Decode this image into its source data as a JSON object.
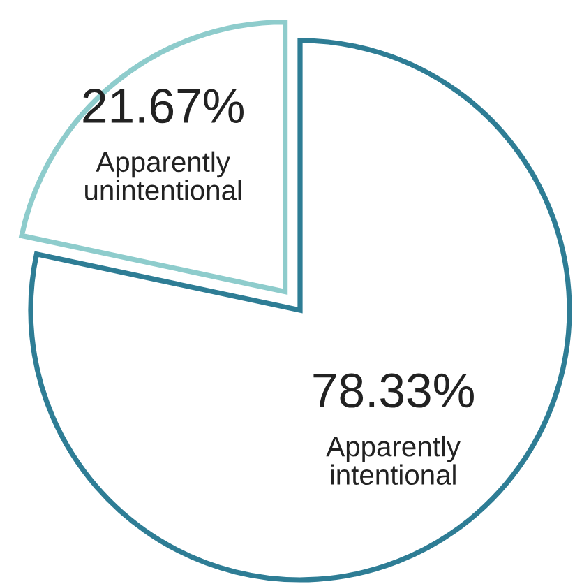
{
  "chart_data": {
    "type": "pie",
    "categories": [
      "Apparently intentional",
      "Apparently unintentional"
    ],
    "values": [
      78.33,
      21.67
    ],
    "value_labels": [
      "78.33%",
      "21.67%"
    ],
    "colors": [
      "#2e7d95",
      "#8ecccc"
    ]
  }
}
